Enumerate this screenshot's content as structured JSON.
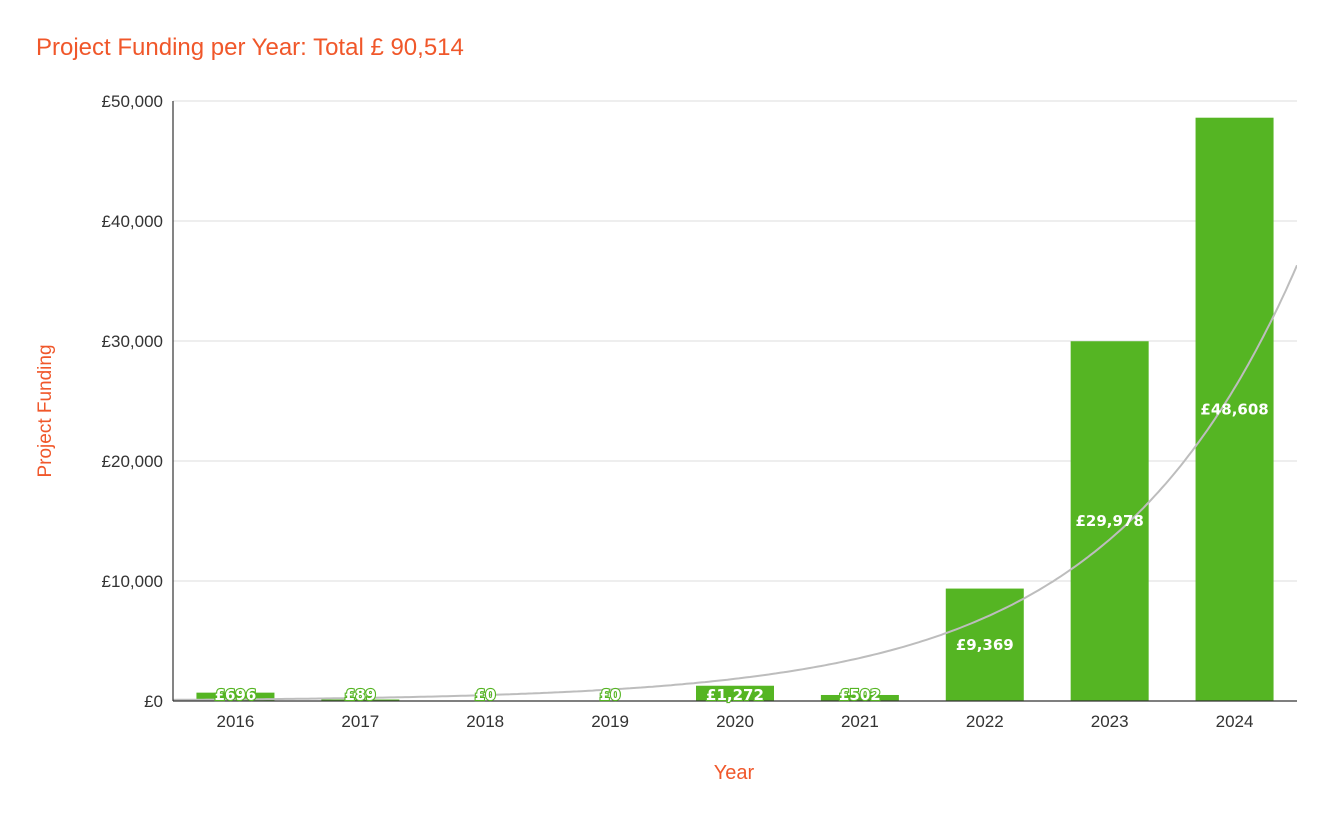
{
  "chart_data": {
    "type": "bar",
    "title": "Project Funding per Year: Total £ 90,514",
    "xlabel": "Year",
    "ylabel": "Project Funding",
    "categories": [
      "2016",
      "2017",
      "2018",
      "2019",
      "2020",
      "2021",
      "2022",
      "2023",
      "2024"
    ],
    "values": [
      696,
      89,
      0,
      0,
      1272,
      502,
      9369,
      29978,
      48608
    ],
    "data_labels": [
      "£696",
      "£89",
      "£0",
      "£0",
      "£1,272",
      "£502",
      "£9,369",
      "£29,978",
      "£48,608"
    ],
    "ylim": [
      0,
      50000
    ],
    "yticks": [
      0,
      10000,
      20000,
      30000,
      40000,
      50000
    ],
    "ytick_labels": [
      "£0",
      "£10,000",
      "£20,000",
      "£30,000",
      "£40,000",
      "£50,000"
    ],
    "grid": true,
    "legend": "none",
    "trendline": {
      "type": "exponential",
      "color": "#bdbdbd"
    },
    "colors": {
      "bar": "#55b523",
      "title": "#f0572a",
      "axis_title": "#f0572a",
      "grid": "#dddddd",
      "label_inside": "#ffffff",
      "label_outline": "#55b523"
    }
  }
}
